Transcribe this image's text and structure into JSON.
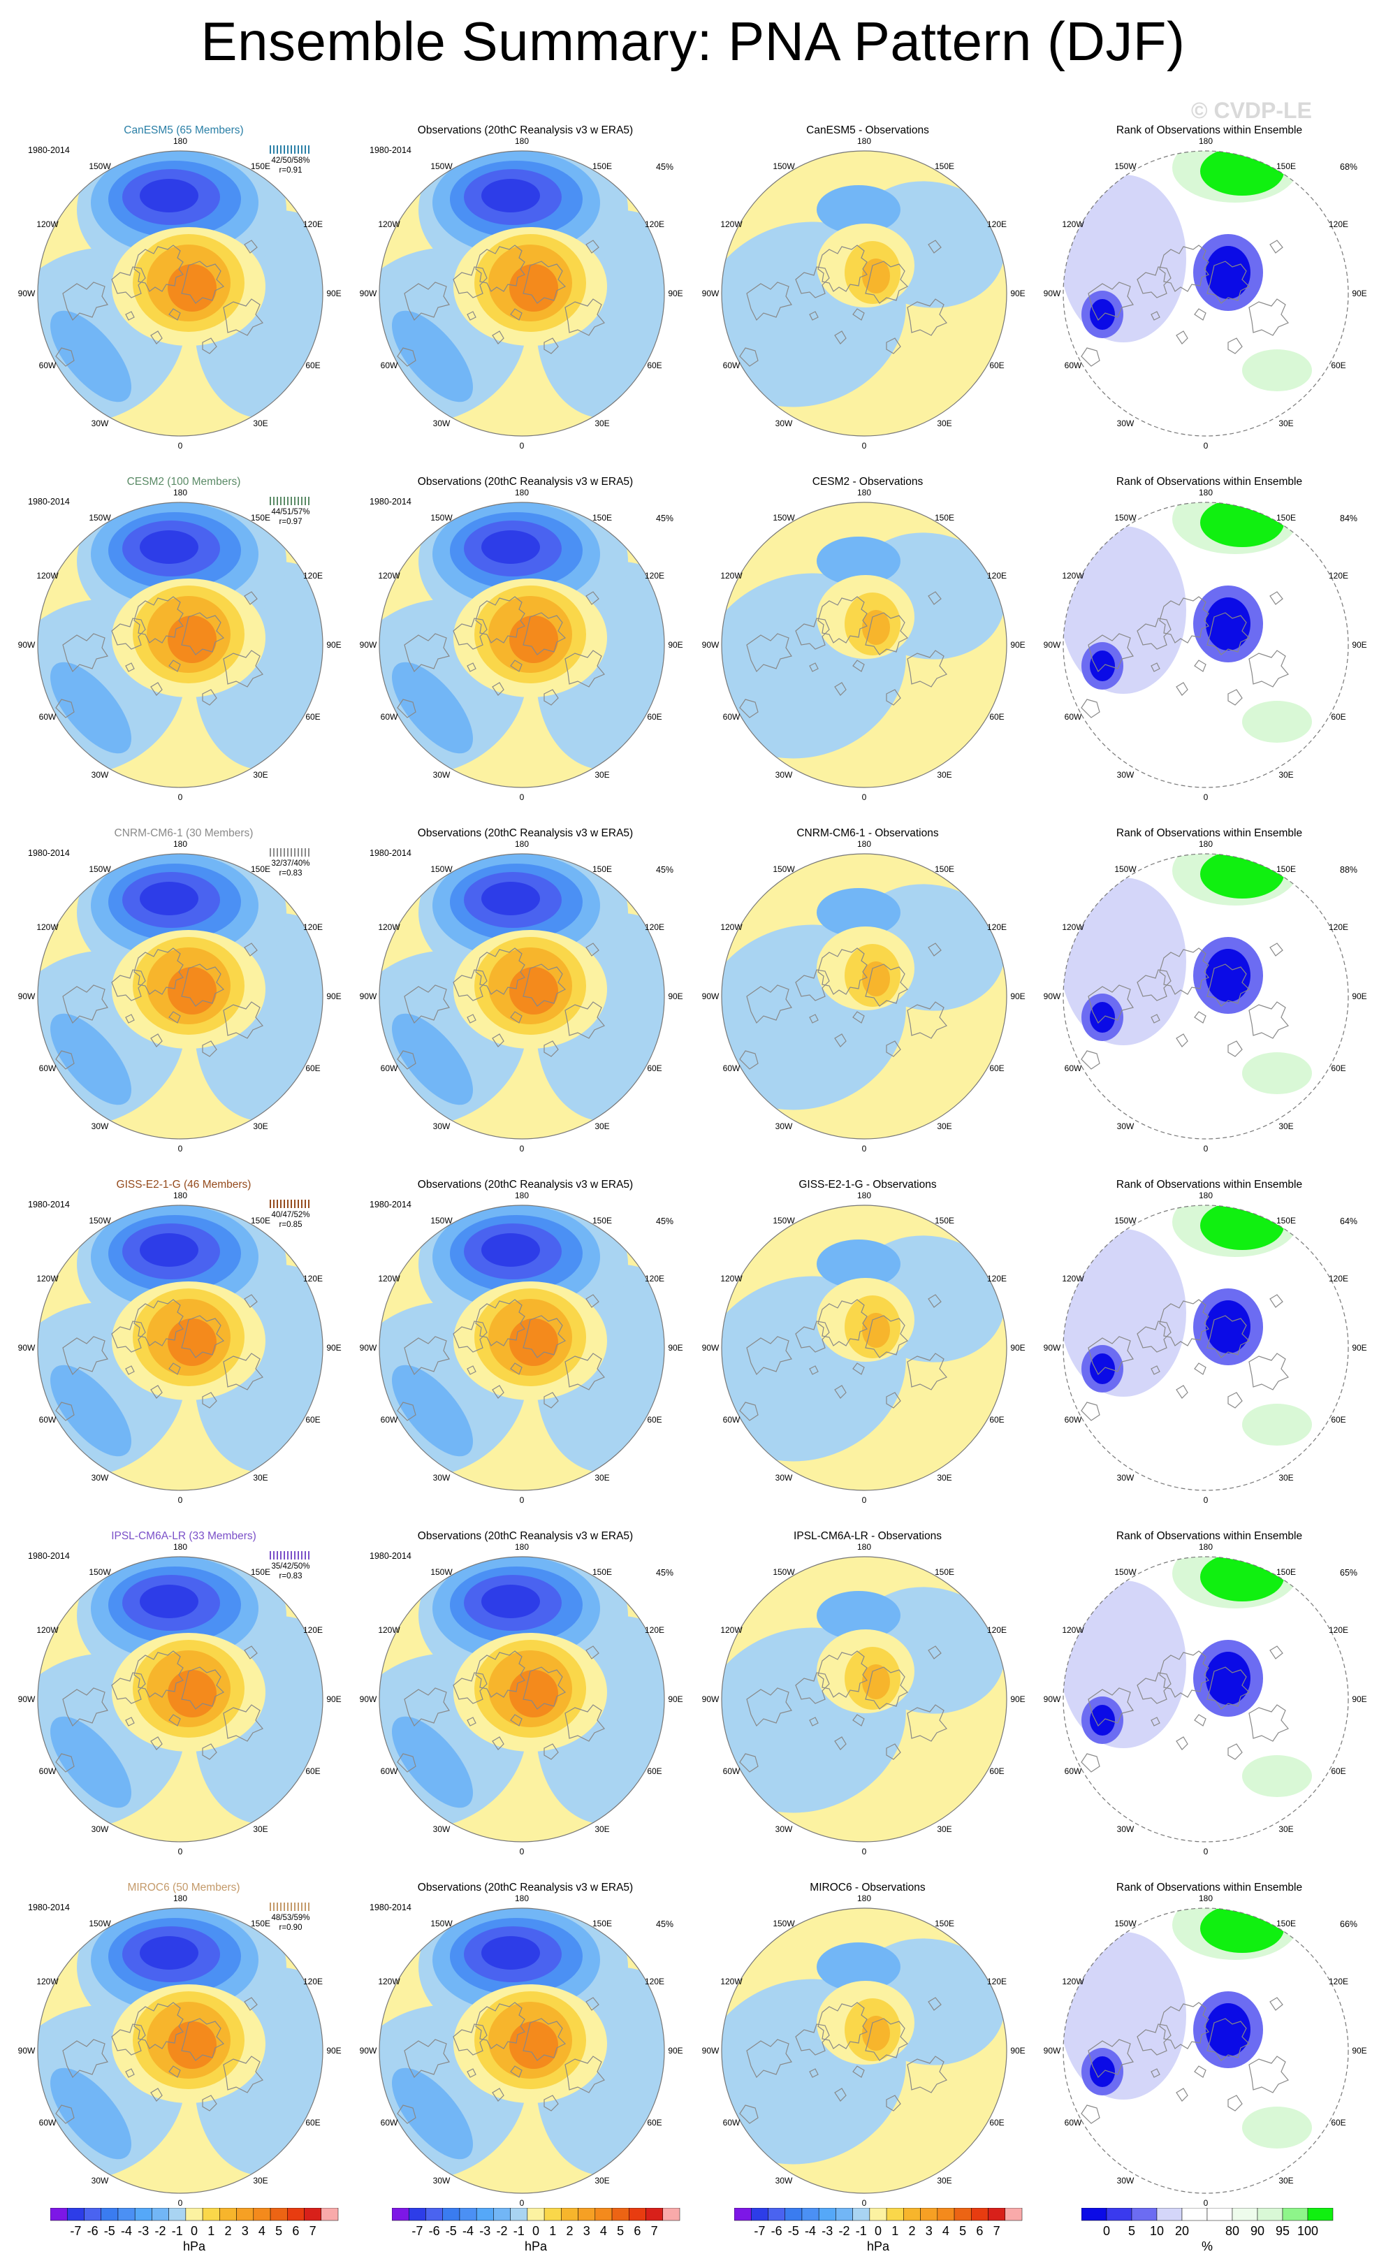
{
  "title": "Ensemble Summary: PNA Pattern (DJF)",
  "watermark": "© CVDP-LE",
  "period": "1980-2014",
  "obs_title": "Observations (20thC Reanalysis v3 w ERA5)",
  "rank_title": "Rank of Observations within Ensemble",
  "obs_pct": "45%",
  "lon_labels": {
    "top": "180",
    "bottom": "0",
    "left": "90W",
    "right": "90E",
    "ul": "150W",
    "ur": "150E",
    "lu": "120W",
    "ru": "120E",
    "ll": "60W",
    "rl": "60E",
    "bl": "30W",
    "br": "30E"
  },
  "colors": {
    "purple": "#7d17e6",
    "blue_dark": "#2d3de8",
    "blue": "#4a63f0",
    "blue_mid": "#4b90f4",
    "blue_light": "#72b6f6",
    "blue_pale": "#a9d4f2",
    "yellow_pale": "#fcf2a1",
    "yellow": "#fad74a",
    "orange_light": "#f7b52c",
    "orange": "#f48a1c",
    "red": "#e83c10",
    "pink": "#f9aaaa",
    "rank_blue": "#0b0be6",
    "rank_blue_mid": "#6c6cf2",
    "rank_blue_pale": "#d4d6f9",
    "rank_green": "#10f010",
    "rank_green_pale": "#d9f8d6"
  },
  "models": [
    {
      "name": "CanESM5 (65 Members)",
      "diff_title": "CanESM5 - Observations",
      "stats": "42/50/58%",
      "r": "r=0.91",
      "color": "#2a7fa6",
      "rank_pct": "68%"
    },
    {
      "name": "CESM2 (100 Members)",
      "diff_title": "CESM2 - Observations",
      "stats": "44/51/57%",
      "r": "r=0.97",
      "color": "#5a8a66",
      "rank_pct": "84%"
    },
    {
      "name": "CNRM-CM6-1 (30 Members)",
      "diff_title": "CNRM-CM6-1 - Observations",
      "stats": "32/37/40%",
      "r": "r=0.83",
      "color": "#8a8a8a",
      "rank_pct": "88%"
    },
    {
      "name": "GISS-E2-1-G (46 Members)",
      "diff_title": "GISS-E2-1-G - Observations",
      "stats": "40/47/52%",
      "r": "r=0.85",
      "color": "#944a1c",
      "rank_pct": "64%"
    },
    {
      "name": "IPSL-CM6A-LR (33 Members)",
      "diff_title": "IPSL-CM6A-LR - Observations",
      "stats": "35/42/50%",
      "r": "r=0.83",
      "color": "#7a4fc8",
      "rank_pct": "65%"
    },
    {
      "name": "MIROC6 (50 Members)",
      "diff_title": "MIROC6 - Observations",
      "stats": "48/53/59%",
      "r": "r=0.90",
      "color": "#c49a6a",
      "rank_pct": "66%"
    }
  ],
  "colorbar_hpa": {
    "ticks": [
      "-7",
      "-6",
      "-5",
      "-4",
      "-3",
      "-2",
      "-1",
      "0",
      "1",
      "2",
      "3",
      "4",
      "5",
      "6",
      "7"
    ],
    "unit": "hPa"
  },
  "colorbar_rank": {
    "ticks": [
      "0",
      "5",
      "10",
      "20",
      "80",
      "90",
      "95",
      "100"
    ],
    "unit": "%"
  }
}
